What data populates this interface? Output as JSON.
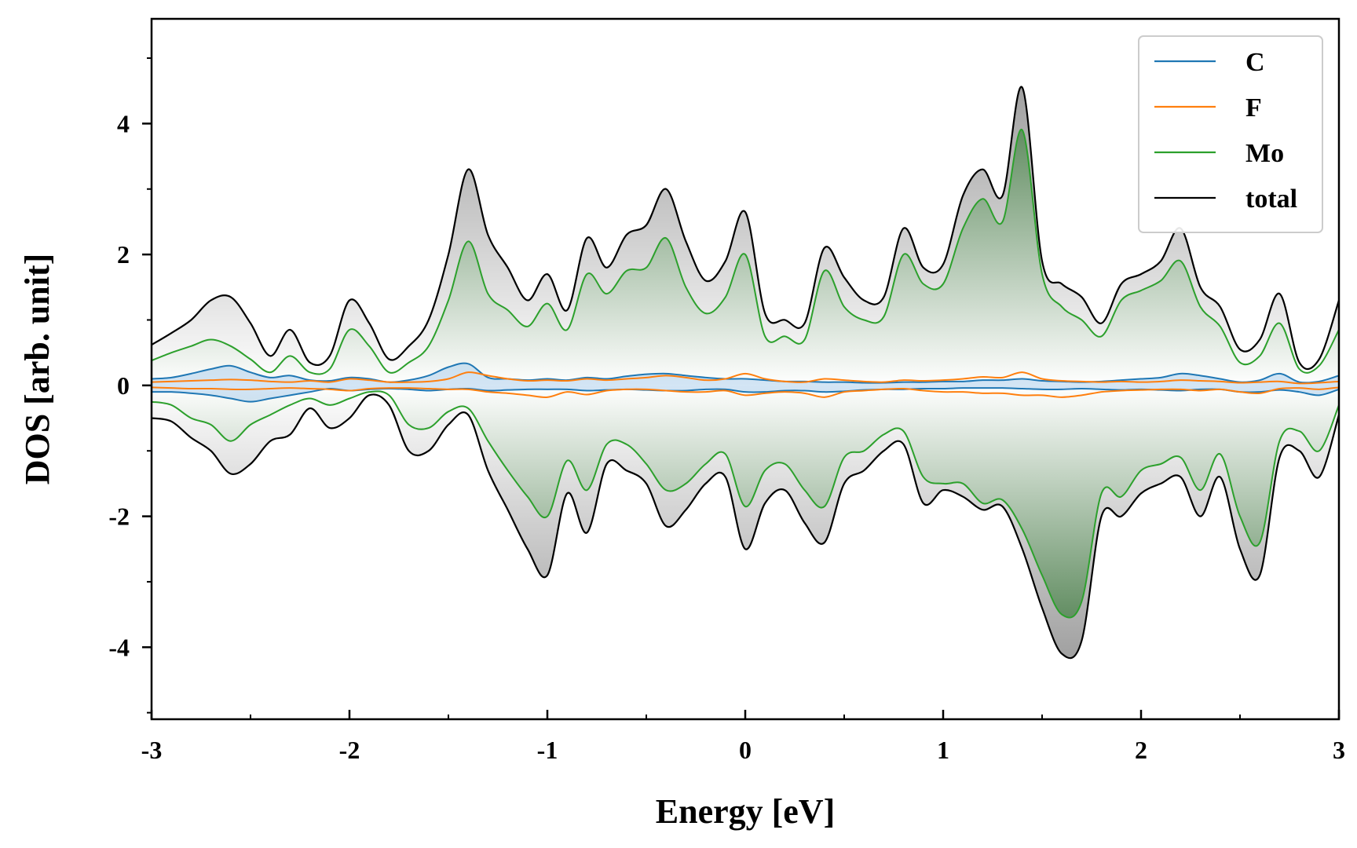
{
  "chart_data": {
    "type": "line",
    "xlabel": "Energy [eV]",
    "ylabel": "DOS [arb. unit]",
    "xlim": [
      -3,
      3
    ],
    "ylim": [
      -5.1,
      5.6
    ],
    "xticks": [
      -3,
      -2,
      -1,
      0,
      1,
      2,
      3
    ],
    "xtick_labels": [
      "-3",
      "-2",
      "-1",
      "0",
      "1",
      "2",
      "3"
    ],
    "yticks": [
      -4,
      -2,
      0,
      2,
      4
    ],
    "ytick_labels": [
      "-4",
      "-2",
      "0",
      "2",
      "4"
    ],
    "grid": false,
    "legend_position": "top-right",
    "legend": [
      "C",
      "F",
      "Mo",
      "total"
    ],
    "colors": {
      "C": "#1f77b4",
      "F": "#ff7f0e",
      "Mo": "#2ca02c",
      "total": "#000000",
      "total_fill": "#b0b0b0",
      "mo_fill": "#5a8a5a",
      "c_fill": "#9ec5e8"
    },
    "x": [
      -3.0,
      -2.9,
      -2.8,
      -2.7,
      -2.6,
      -2.5,
      -2.4,
      -2.3,
      -2.2,
      -2.1,
      -2.0,
      -1.9,
      -1.8,
      -1.7,
      -1.6,
      -1.5,
      -1.4,
      -1.3,
      -1.2,
      -1.1,
      -1.0,
      -0.9,
      -0.8,
      -0.7,
      -0.6,
      -0.5,
      -0.4,
      -0.3,
      -0.2,
      -0.1,
      0.0,
      0.1,
      0.2,
      0.3,
      0.4,
      0.5,
      0.6,
      0.7,
      0.8,
      0.9,
      1.0,
      1.1,
      1.2,
      1.3,
      1.4,
      1.5,
      1.6,
      1.7,
      1.8,
      1.9,
      2.0,
      2.1,
      2.2,
      2.3,
      2.4,
      2.5,
      2.6,
      2.7,
      2.8,
      2.9,
      3.0
    ],
    "series": [
      {
        "name": "total",
        "up": [
          0.62,
          0.8,
          1.0,
          1.3,
          1.35,
          0.95,
          0.45,
          0.85,
          0.35,
          0.45,
          1.3,
          0.95,
          0.4,
          0.6,
          1.0,
          2.0,
          3.3,
          2.3,
          1.8,
          1.3,
          1.7,
          1.15,
          2.25,
          1.8,
          2.3,
          2.45,
          3.0,
          2.2,
          1.6,
          1.9,
          2.65,
          1.1,
          1.0,
          0.95,
          2.1,
          1.65,
          1.3,
          1.35,
          2.4,
          1.8,
          1.85,
          2.9,
          3.3,
          2.9,
          4.55,
          1.9,
          1.55,
          1.35,
          0.95,
          1.55,
          1.7,
          1.9,
          2.4,
          1.5,
          1.2,
          0.55,
          0.7,
          1.4,
          0.35,
          0.4,
          1.3
        ],
        "down": [
          -0.5,
          -0.55,
          -0.8,
          -1.0,
          -1.35,
          -1.2,
          -0.85,
          -0.75,
          -0.35,
          -0.65,
          -0.5,
          -0.15,
          -0.3,
          -1.0,
          -1.0,
          -0.6,
          -0.45,
          -1.3,
          -1.9,
          -2.5,
          -2.9,
          -1.65,
          -2.25,
          -1.2,
          -1.3,
          -1.5,
          -2.15,
          -1.9,
          -1.5,
          -1.4,
          -2.5,
          -1.8,
          -1.6,
          -2.1,
          -2.4,
          -1.5,
          -1.3,
          -1.0,
          -0.9,
          -1.8,
          -1.6,
          -1.7,
          -1.9,
          -1.85,
          -2.5,
          -3.4,
          -4.1,
          -3.9,
          -2.0,
          -2.0,
          -1.65,
          -1.5,
          -1.4,
          -2.0,
          -1.4,
          -2.5,
          -2.9,
          -1.1,
          -1.0,
          -1.4,
          -0.45
        ]
      },
      {
        "name": "Mo",
        "up": [
          0.38,
          0.5,
          0.6,
          0.7,
          0.6,
          0.4,
          0.2,
          0.45,
          0.2,
          0.25,
          0.85,
          0.6,
          0.2,
          0.35,
          0.6,
          1.3,
          2.2,
          1.4,
          1.15,
          0.9,
          1.25,
          0.85,
          1.7,
          1.4,
          1.75,
          1.8,
          2.25,
          1.5,
          1.1,
          1.35,
          2.0,
          0.75,
          0.75,
          0.7,
          1.75,
          1.2,
          1.0,
          1.05,
          2.0,
          1.55,
          1.55,
          2.4,
          2.85,
          2.5,
          3.9,
          1.7,
          1.2,
          1.0,
          0.75,
          1.3,
          1.45,
          1.6,
          1.9,
          1.2,
          0.9,
          0.35,
          0.45,
          0.95,
          0.25,
          0.3,
          0.85
        ],
        "down": [
          -0.25,
          -0.3,
          -0.5,
          -0.6,
          -0.85,
          -0.6,
          -0.45,
          -0.3,
          -0.2,
          -0.3,
          -0.2,
          -0.1,
          -0.15,
          -0.6,
          -0.65,
          -0.4,
          -0.35,
          -0.85,
          -1.3,
          -1.7,
          -2.0,
          -1.15,
          -1.6,
          -0.9,
          -0.9,
          -1.2,
          -1.6,
          -1.5,
          -1.2,
          -1.05,
          -1.85,
          -1.3,
          -1.2,
          -1.6,
          -1.85,
          -1.1,
          -1.0,
          -0.75,
          -0.7,
          -1.4,
          -1.5,
          -1.5,
          -1.8,
          -1.75,
          -2.2,
          -2.9,
          -3.5,
          -3.3,
          -1.65,
          -1.7,
          -1.3,
          -1.2,
          -1.1,
          -1.6,
          -1.05,
          -2.0,
          -2.4,
          -0.85,
          -0.7,
          -1.0,
          -0.3
        ]
      },
      {
        "name": "C",
        "up": [
          0.1,
          0.12,
          0.18,
          0.25,
          0.3,
          0.2,
          0.12,
          0.15,
          0.08,
          0.07,
          0.12,
          0.1,
          0.05,
          0.08,
          0.15,
          0.28,
          0.33,
          0.12,
          0.1,
          0.08,
          0.1,
          0.08,
          0.12,
          0.1,
          0.14,
          0.17,
          0.18,
          0.15,
          0.12,
          0.1,
          0.1,
          0.08,
          0.06,
          0.06,
          0.05,
          0.05,
          0.04,
          0.04,
          0.05,
          0.05,
          0.06,
          0.06,
          0.08,
          0.08,
          0.1,
          0.07,
          0.06,
          0.05,
          0.06,
          0.08,
          0.1,
          0.12,
          0.18,
          0.15,
          0.1,
          0.05,
          0.08,
          0.18,
          0.05,
          0.06,
          0.15
        ],
        "down": [
          -0.1,
          -0.1,
          -0.12,
          -0.15,
          -0.2,
          -0.25,
          -0.2,
          -0.15,
          -0.1,
          -0.05,
          -0.08,
          -0.06,
          -0.05,
          -0.06,
          -0.08,
          -0.06,
          -0.05,
          -0.08,
          -0.07,
          -0.06,
          -0.06,
          -0.06,
          -0.08,
          -0.07,
          -0.06,
          -0.07,
          -0.08,
          -0.08,
          -0.06,
          -0.06,
          -0.1,
          -0.1,
          -0.08,
          -0.08,
          -0.1,
          -0.09,
          -0.07,
          -0.06,
          -0.06,
          -0.05,
          -0.05,
          -0.04,
          -0.04,
          -0.04,
          -0.05,
          -0.06,
          -0.06,
          -0.05,
          -0.06,
          -0.07,
          -0.06,
          -0.07,
          -0.08,
          -0.06,
          -0.06,
          -0.1,
          -0.1,
          -0.07,
          -0.1,
          -0.15,
          -0.06
        ]
      },
      {
        "name": "F",
        "up": [
          0.05,
          0.06,
          0.07,
          0.08,
          0.09,
          0.08,
          0.06,
          0.05,
          0.07,
          0.05,
          0.1,
          0.08,
          0.05,
          0.05,
          0.06,
          0.1,
          0.2,
          0.15,
          0.1,
          0.07,
          0.08,
          0.07,
          0.1,
          0.08,
          0.1,
          0.12,
          0.15,
          0.12,
          0.08,
          0.1,
          0.18,
          0.1,
          0.06,
          0.05,
          0.1,
          0.08,
          0.06,
          0.05,
          0.08,
          0.07,
          0.08,
          0.1,
          0.13,
          0.12,
          0.2,
          0.1,
          0.07,
          0.06,
          0.05,
          0.06,
          0.05,
          0.06,
          0.08,
          0.07,
          0.06,
          0.04,
          0.05,
          0.06,
          0.03,
          0.04,
          0.06
        ],
        "down": [
          -0.03,
          -0.04,
          -0.05,
          -0.05,
          -0.06,
          -0.06,
          -0.05,
          -0.04,
          -0.05,
          -0.06,
          -0.08,
          -0.05,
          -0.04,
          -0.04,
          -0.05,
          -0.06,
          -0.06,
          -0.1,
          -0.12,
          -0.15,
          -0.18,
          -0.1,
          -0.14,
          -0.08,
          -0.06,
          -0.06,
          -0.08,
          -0.1,
          -0.1,
          -0.08,
          -0.15,
          -0.12,
          -0.1,
          -0.12,
          -0.18,
          -0.1,
          -0.08,
          -0.06,
          -0.05,
          -0.08,
          -0.1,
          -0.1,
          -0.12,
          -0.12,
          -0.15,
          -0.15,
          -0.18,
          -0.15,
          -0.1,
          -0.08,
          -0.07,
          -0.06,
          -0.06,
          -0.08,
          -0.06,
          -0.1,
          -0.12,
          -0.05,
          -0.04,
          -0.06,
          -0.03
        ]
      }
    ]
  }
}
